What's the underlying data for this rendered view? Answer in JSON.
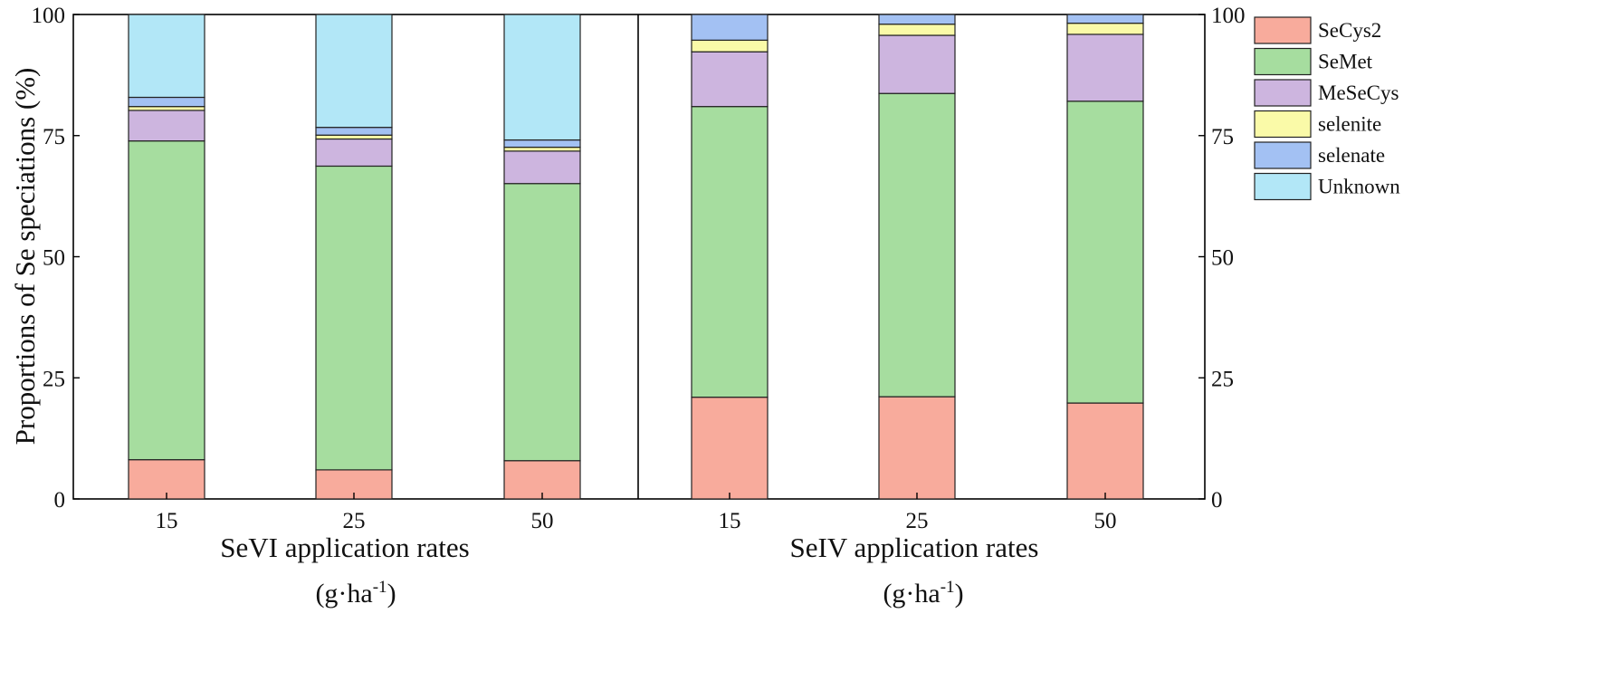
{
  "chart_data": {
    "type": "bar",
    "stacked": true,
    "ylabel": "Proportions of Se speciations (%)",
    "ylim": [
      0,
      100
    ],
    "yticks": [
      0,
      25,
      50,
      75,
      100
    ],
    "grid": false,
    "legend_position": "right",
    "colors": {
      "SeCys2": "#f8ab9c",
      "SeMet": "#a6dd9f",
      "MeSeCys": "#cdb5df",
      "selenite": "#fafaa8",
      "selenate": "#a3c1f3",
      "Unknown": "#b2e7f7"
    },
    "series_names": [
      "SeCys2",
      "SeMet",
      "MeSeCys",
      "selenite",
      "selenate",
      "Unknown"
    ],
    "panels": [
      {
        "group_label": "SeVI application rates",
        "categories": [
          "15",
          "25",
          "50"
        ],
        "series": [
          {
            "name": "SeCys2",
            "values": [
              8.1,
              6.0,
              7.9
            ]
          },
          {
            "name": "SeMet",
            "values": [
              65.8,
              62.7,
              57.2
            ]
          },
          {
            "name": "MeSeCys",
            "values": [
              6.3,
              5.6,
              6.7
            ]
          },
          {
            "name": "selenite",
            "values": [
              0.8,
              0.8,
              0.8
            ]
          },
          {
            "name": "selenate",
            "values": [
              1.9,
              1.6,
              1.5
            ]
          },
          {
            "name": "Unknown",
            "values": [
              17.1,
              23.3,
              25.9
            ]
          }
        ]
      },
      {
        "group_label": "SeIV application rates",
        "categories": [
          "15",
          "25",
          "50"
        ],
        "series": [
          {
            "name": "SeCys2",
            "values": [
              21.0,
              21.1,
              19.8
            ]
          },
          {
            "name": "SeMet",
            "values": [
              60.0,
              62.6,
              62.3
            ]
          },
          {
            "name": "MeSeCys",
            "values": [
              11.3,
              12.0,
              13.8
            ]
          },
          {
            "name": "selenite",
            "values": [
              2.4,
              2.3,
              2.3
            ]
          },
          {
            "name": "selenate",
            "values": [
              5.3,
              2.0,
              1.8
            ]
          },
          {
            "name": "Unknown",
            "values": [
              0,
              0,
              0
            ]
          }
        ]
      }
    ],
    "unit_label": "(g·ha",
    "unit_superscript": "-1",
    "unit_close": ")"
  }
}
